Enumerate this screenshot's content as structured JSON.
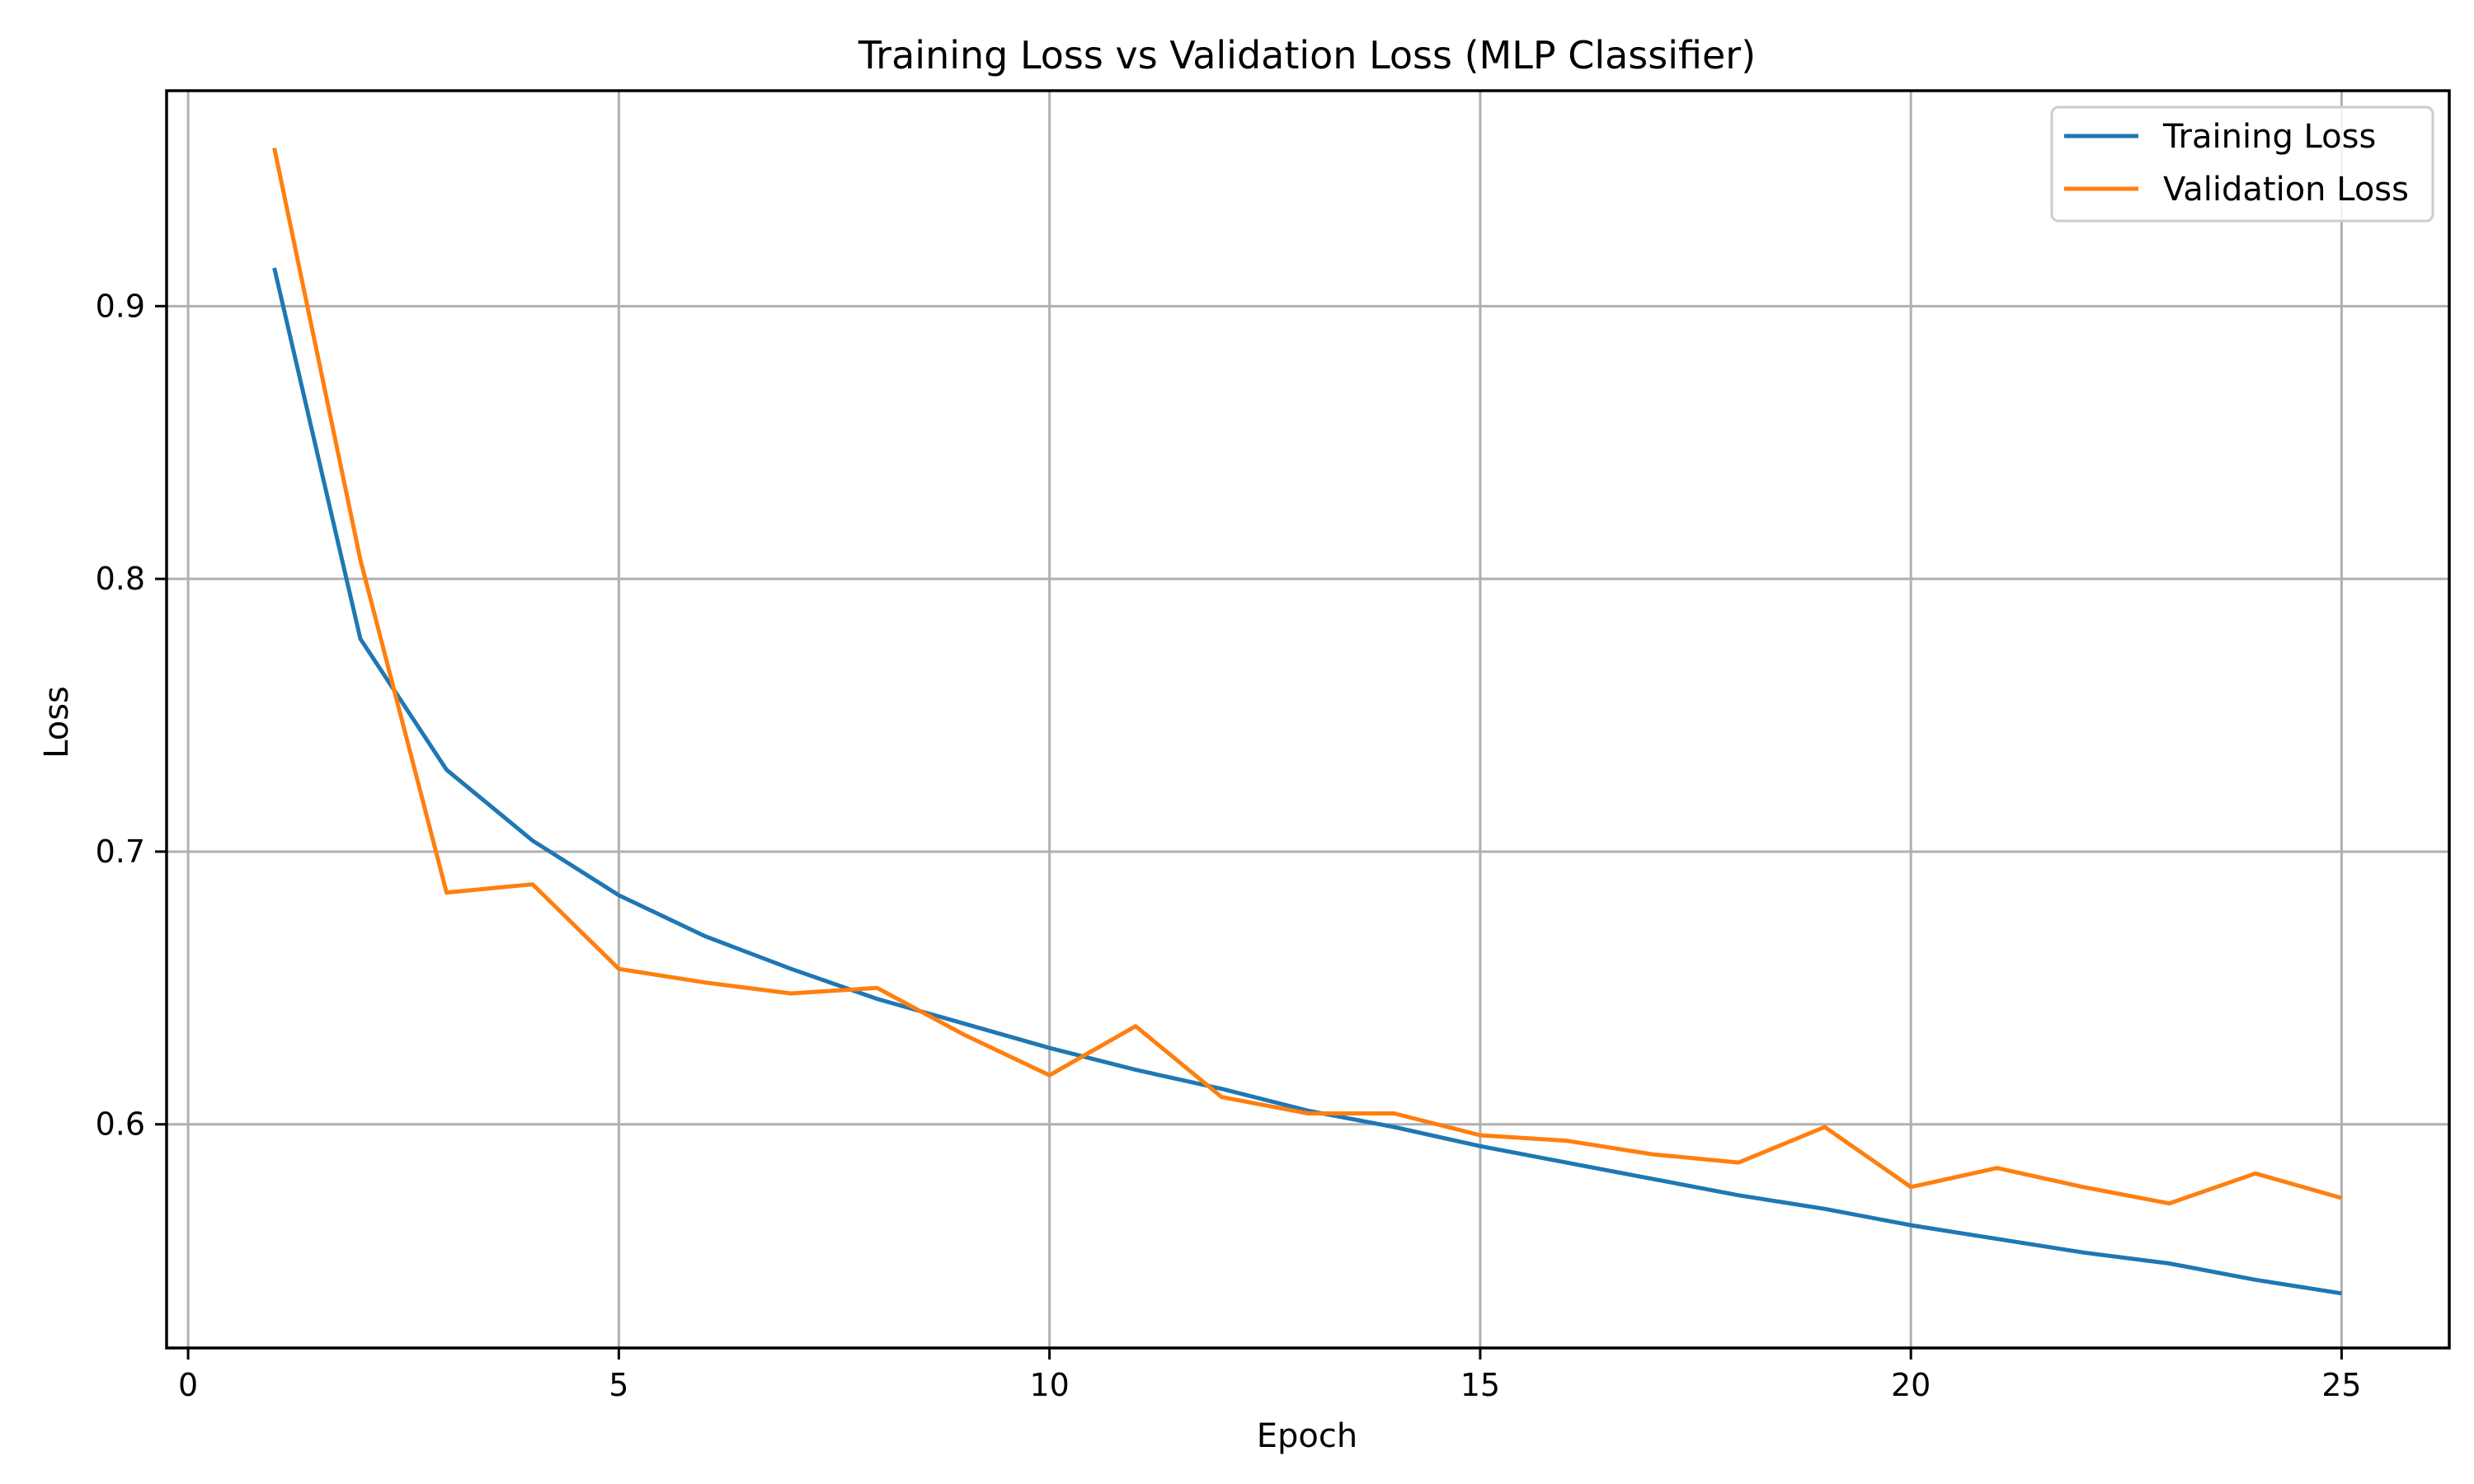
{
  "chart_data": {
    "type": "line",
    "title": "Training Loss vs Validation Loss (MLP Classifier)",
    "xlabel": "Epoch",
    "ylabel": "Loss",
    "xlim": [
      -0.25,
      26.25
    ],
    "ylim": [
      0.518,
      0.979
    ],
    "xticks": [
      0,
      5,
      10,
      15,
      20,
      25
    ],
    "xtick_labels": [
      "0",
      "5",
      "10",
      "15",
      "20",
      "25"
    ],
    "yticks": [
      0.6,
      0.7,
      0.8,
      0.9
    ],
    "ytick_labels": [
      "0.6",
      "0.7",
      "0.8",
      "0.9"
    ],
    "grid": true,
    "legend_position": "top-right",
    "x": [
      1,
      2,
      3,
      4,
      5,
      6,
      7,
      8,
      9,
      10,
      11,
      12,
      13,
      14,
      15,
      16,
      17,
      18,
      19,
      20,
      21,
      22,
      23,
      24,
      25
    ],
    "series": [
      {
        "name": "Training Loss",
        "color": "#1f77b4",
        "values": [
          0.914,
          0.778,
          0.73,
          0.704,
          0.684,
          0.669,
          0.657,
          0.646,
          0.637,
          0.628,
          0.62,
          0.613,
          0.605,
          0.599,
          0.592,
          0.586,
          0.58,
          0.574,
          0.569,
          0.563,
          0.558,
          0.553,
          0.549,
          0.543,
          0.538
        ]
      },
      {
        "name": "Validation Loss",
        "color": "#ff7f0e",
        "values": [
          0.958,
          0.807,
          0.685,
          0.688,
          0.657,
          0.652,
          0.648,
          0.65,
          0.633,
          0.618,
          0.636,
          0.61,
          0.604,
          0.604,
          0.596,
          0.594,
          0.589,
          0.586,
          0.599,
          0.577,
          0.584,
          0.577,
          0.571,
          0.582,
          0.573
        ]
      }
    ]
  }
}
